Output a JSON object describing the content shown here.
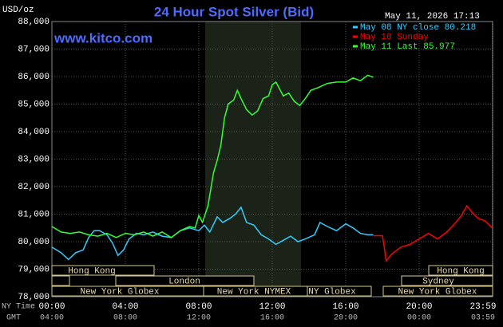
{
  "chart_data": {
    "type": "line",
    "title": "24 Hour Spot Silver (Bid)",
    "y_label": "USD/oz",
    "timestamp": "May 11, 2026 17:13",
    "watermark": "www.kitco.com",
    "x_label": "NY Time",
    "x2_label": "GMT",
    "ylim": [
      78000,
      88000
    ],
    "yticks": [
      {
        "value": 78000,
        "label": "78,000"
      },
      {
        "value": 79000,
        "label": "79,000"
      },
      {
        "value": 80000,
        "label": "80,000"
      },
      {
        "value": 81000,
        "label": "81,000"
      },
      {
        "value": 82000,
        "label": "82,000"
      },
      {
        "value": 83000,
        "label": "83,000"
      },
      {
        "value": 84000,
        "label": "84,000"
      },
      {
        "value": 85000,
        "label": "85,000"
      },
      {
        "value": 86000,
        "label": "86,000"
      },
      {
        "value": 87000,
        "label": "87,000"
      },
      {
        "value": 88000,
        "label": "88,000"
      }
    ],
    "xlim": [
      0,
      24
    ],
    "xticks": [
      {
        "value": 0,
        "label": "00:00"
      },
      {
        "value": 4,
        "label": "04:00"
      },
      {
        "value": 8,
        "label": "08:00"
      },
      {
        "value": 12,
        "label": "12:00"
      },
      {
        "value": 16,
        "label": "16:00"
      },
      {
        "value": 20,
        "label": "20:00"
      },
      {
        "value": 23.983,
        "label": "23:59"
      }
    ],
    "x2ticks": [
      "04:00",
      "08:00",
      "12:00",
      "16:00",
      "20:00",
      "00:00",
      "03:59"
    ],
    "grid": true,
    "sessions": [
      "Hong Kong",
      "London",
      "New York Globex",
      "New York NYMEX",
      "NY Globex",
      "Hong Kong",
      "Sydney",
      "New York Globex"
    ],
    "series": [
      {
        "name": "May 08 NY close 80.218",
        "color": "#33ccff",
        "x": [
          0,
          0.5,
          0.9,
          1.3,
          1.7,
          2,
          2.3,
          2.6,
          3,
          3.3,
          3.6,
          3.9,
          4.2,
          4.6,
          5,
          5.5,
          6,
          6.5,
          7,
          7.5,
          8,
          8.3,
          8.6,
          9,
          9.3,
          9.7,
          10,
          10.3,
          10.6,
          11,
          11.4,
          11.8,
          12.2,
          12.6,
          13,
          13.4,
          13.8,
          14.3,
          14.6,
          15,
          15.5,
          16,
          16.4,
          16.8,
          17.2,
          17.5
        ],
        "values": [
          79800,
          79600,
          79350,
          79600,
          79700,
          80150,
          80400,
          80400,
          80250,
          79950,
          79500,
          79700,
          80100,
          80300,
          80250,
          80350,
          80200,
          80150,
          80400,
          80500,
          80400,
          80600,
          80350,
          80900,
          80700,
          80850,
          81000,
          81250,
          80700,
          80600,
          80250,
          80100,
          79900,
          80050,
          80200,
          80000,
          80100,
          80250,
          80700,
          80550,
          80400,
          80650,
          80500,
          80300,
          80250,
          80250
        ]
      },
      {
        "name": "May 10 Sunday",
        "color": "#ff0000",
        "x": [
          17.5,
          18,
          18.1,
          18.2,
          18.5,
          19,
          19.5,
          20,
          20.5,
          21,
          21.5,
          22,
          22.3,
          22.6,
          22.9,
          23.2,
          23.6,
          23.98
        ],
        "values": [
          80218,
          80218,
          79800,
          79300,
          79550,
          79800,
          79900,
          80100,
          80300,
          80100,
          80350,
          80700,
          80950,
          81300,
          81050,
          80850,
          80750,
          80500
        ]
      },
      {
        "name": "May 11 Last 85.977",
        "color": "#33ff33",
        "x": [
          0,
          0.5,
          1,
          1.5,
          2,
          2.5,
          3,
          3.5,
          4,
          4.5,
          5,
          5.5,
          6,
          6.5,
          7,
          7.5,
          7.8,
          8,
          8.2,
          8.5,
          8.8,
          9,
          9.2,
          9.4,
          9.6,
          9.9,
          10.1,
          10.3,
          10.6,
          10.9,
          11.2,
          11.5,
          11.8,
          12,
          12.2,
          12.6,
          12.9,
          13.2,
          13.5,
          13.8,
          14.1,
          14.5,
          15,
          15.5,
          16,
          16.4,
          16.8,
          17.2,
          17.5
        ],
        "values": [
          80550,
          80350,
          80300,
          80350,
          80250,
          80200,
          80300,
          80150,
          80300,
          80250,
          80350,
          80200,
          80350,
          80150,
          80400,
          80550,
          80500,
          80950,
          80700,
          81300,
          82500,
          82950,
          83500,
          84500,
          85000,
          85150,
          85500,
          85200,
          84800,
          84600,
          84750,
          85200,
          85300,
          85700,
          85800,
          85300,
          85400,
          85100,
          84950,
          85200,
          85500,
          85600,
          85750,
          85800,
          85800,
          85950,
          85850,
          86050,
          85977
        ]
      }
    ]
  }
}
